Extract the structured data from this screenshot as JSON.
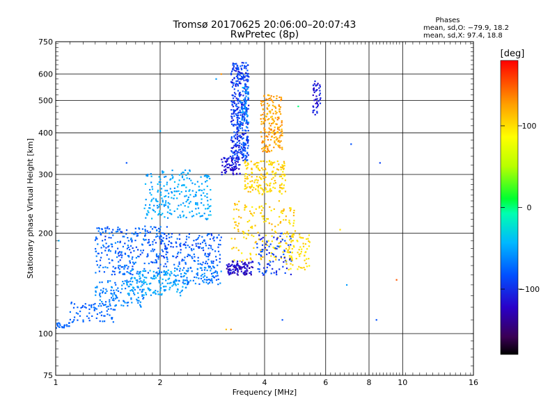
{
  "chart_data": {
    "type": "scatter",
    "title": "Tromsø 20170625 20:06:00–20:07:43",
    "subtitle": "RwPretec (8p)",
    "xlabel": "Frequency [MHz]",
    "ylabel": "Stationary phase Virtual Height [km]",
    "x_scale": "log",
    "y_scale": "log",
    "xlim": [
      1,
      16
    ],
    "ylim": [
      75,
      750
    ],
    "x_ticks": [
      "1",
      "2",
      "4",
      "6",
      "8",
      "10",
      "16"
    ],
    "y_ticks": [
      "75",
      "100",
      "200",
      "300",
      "400",
      "500",
      "600",
      "750"
    ],
    "phase_stats": {
      "heading": "Phases",
      "line_o": "mean, sd,O: −79.9, 18.2",
      "line_x": "mean, sd,X:  97.4, 18.8"
    },
    "colorbar": {
      "unit": "[deg]",
      "range": [
        -180,
        180
      ],
      "ticks": [
        "100",
        "0",
        "−100"
      ],
      "tick_values": [
        100,
        0,
        -100
      ]
    },
    "grid": true,
    "clusters": [
      {
        "x": [
          1.0,
          1.1
        ],
        "y": [
          104,
          108
        ],
        "phase": [
          -95,
          -85
        ],
        "n": 25
      },
      {
        "x": [
          1.1,
          1.5
        ],
        "y": [
          108,
          125
        ],
        "phase": [
          -100,
          -80
        ],
        "n": 70
      },
      {
        "x": [
          1.3,
          1.8
        ],
        "y": [
          120,
          145
        ],
        "phase": [
          -90,
          -60
        ],
        "n": 120
      },
      {
        "x": [
          1.3,
          2.1
        ],
        "y": [
          150,
          210
        ],
        "phase": [
          -110,
          -70
        ],
        "n": 280
      },
      {
        "x": [
          1.6,
          2.4
        ],
        "y": [
          130,
          155
        ],
        "phase": [
          -70,
          -40
        ],
        "n": 150
      },
      {
        "x": [
          1.8,
          2.8
        ],
        "y": [
          220,
          310
        ],
        "phase": [
          -70,
          -40
        ],
        "n": 230
      },
      {
        "x": [
          2.0,
          3.0
        ],
        "y": [
          160,
          200
        ],
        "phase": [
          -110,
          -80
        ],
        "n": 160
      },
      {
        "x": [
          2.2,
          3.0
        ],
        "y": [
          140,
          160
        ],
        "phase": [
          -100,
          -60
        ],
        "n": 100
      },
      {
        "x": [
          3.0,
          3.4
        ],
        "y": [
          300,
          340
        ],
        "phase": [
          -130,
          -110
        ],
        "n": 80
      },
      {
        "x": [
          3.1,
          3.7
        ],
        "y": [
          150,
          165
        ],
        "phase": [
          -140,
          -110
        ],
        "n": 110
      },
      {
        "x": [
          3.2,
          3.6
        ],
        "y": [
          330,
          650
        ],
        "phase": [
          -120,
          -90
        ],
        "n": 420
      },
      {
        "x": [
          3.4,
          3.6
        ],
        "y": [
          400,
          550
        ],
        "phase": [
          -80,
          -50
        ],
        "n": 40
      },
      {
        "x": [
          3.5,
          4.6
        ],
        "y": [
          260,
          330
        ],
        "phase": [
          90,
          120
        ],
        "n": 180
      },
      {
        "x": [
          3.9,
          4.5
        ],
        "y": [
          350,
          520
        ],
        "phase": [
          110,
          140
        ],
        "n": 190
      },
      {
        "x": [
          3.2,
          4.9
        ],
        "y": [
          165,
          250
        ],
        "phase": [
          90,
          120
        ],
        "n": 170
      },
      {
        "x": [
          3.8,
          4.8
        ],
        "y": [
          150,
          200
        ],
        "phase": [
          -120,
          -90
        ],
        "n": 90
      },
      {
        "x": [
          4.6,
          5.4
        ],
        "y": [
          155,
          200
        ],
        "phase": [
          90,
          110
        ],
        "n": 70
      },
      {
        "x": [
          5.5,
          5.8
        ],
        "y": [
          450,
          580
        ],
        "phase": [
          -130,
          -110
        ],
        "n": 45
      }
    ],
    "outliers": [
      {
        "x": 7.1,
        "y": 370,
        "phase": -100
      },
      {
        "x": 8.6,
        "y": 325,
        "phase": -105
      },
      {
        "x": 9.6,
        "y": 145,
        "phase": 150
      },
      {
        "x": 8.4,
        "y": 110,
        "phase": -100
      },
      {
        "x": 6.9,
        "y": 140,
        "phase": -60
      },
      {
        "x": 6.6,
        "y": 205,
        "phase": 100
      },
      {
        "x": 3.0,
        "y": 600,
        "phase": 130
      },
      {
        "x": 2.9,
        "y": 580,
        "phase": -60
      },
      {
        "x": 2.0,
        "y": 405,
        "phase": -50
      },
      {
        "x": 1.6,
        "y": 325,
        "phase": -100
      },
      {
        "x": 5.0,
        "y": 480,
        "phase": 0
      },
      {
        "x": 4.5,
        "y": 110,
        "phase": -100
      },
      {
        "x": 3.1,
        "y": 103,
        "phase": 110
      },
      {
        "x": 3.2,
        "y": 103,
        "phase": 130
      },
      {
        "x": 1.02,
        "y": 190,
        "phase": -50
      }
    ]
  }
}
